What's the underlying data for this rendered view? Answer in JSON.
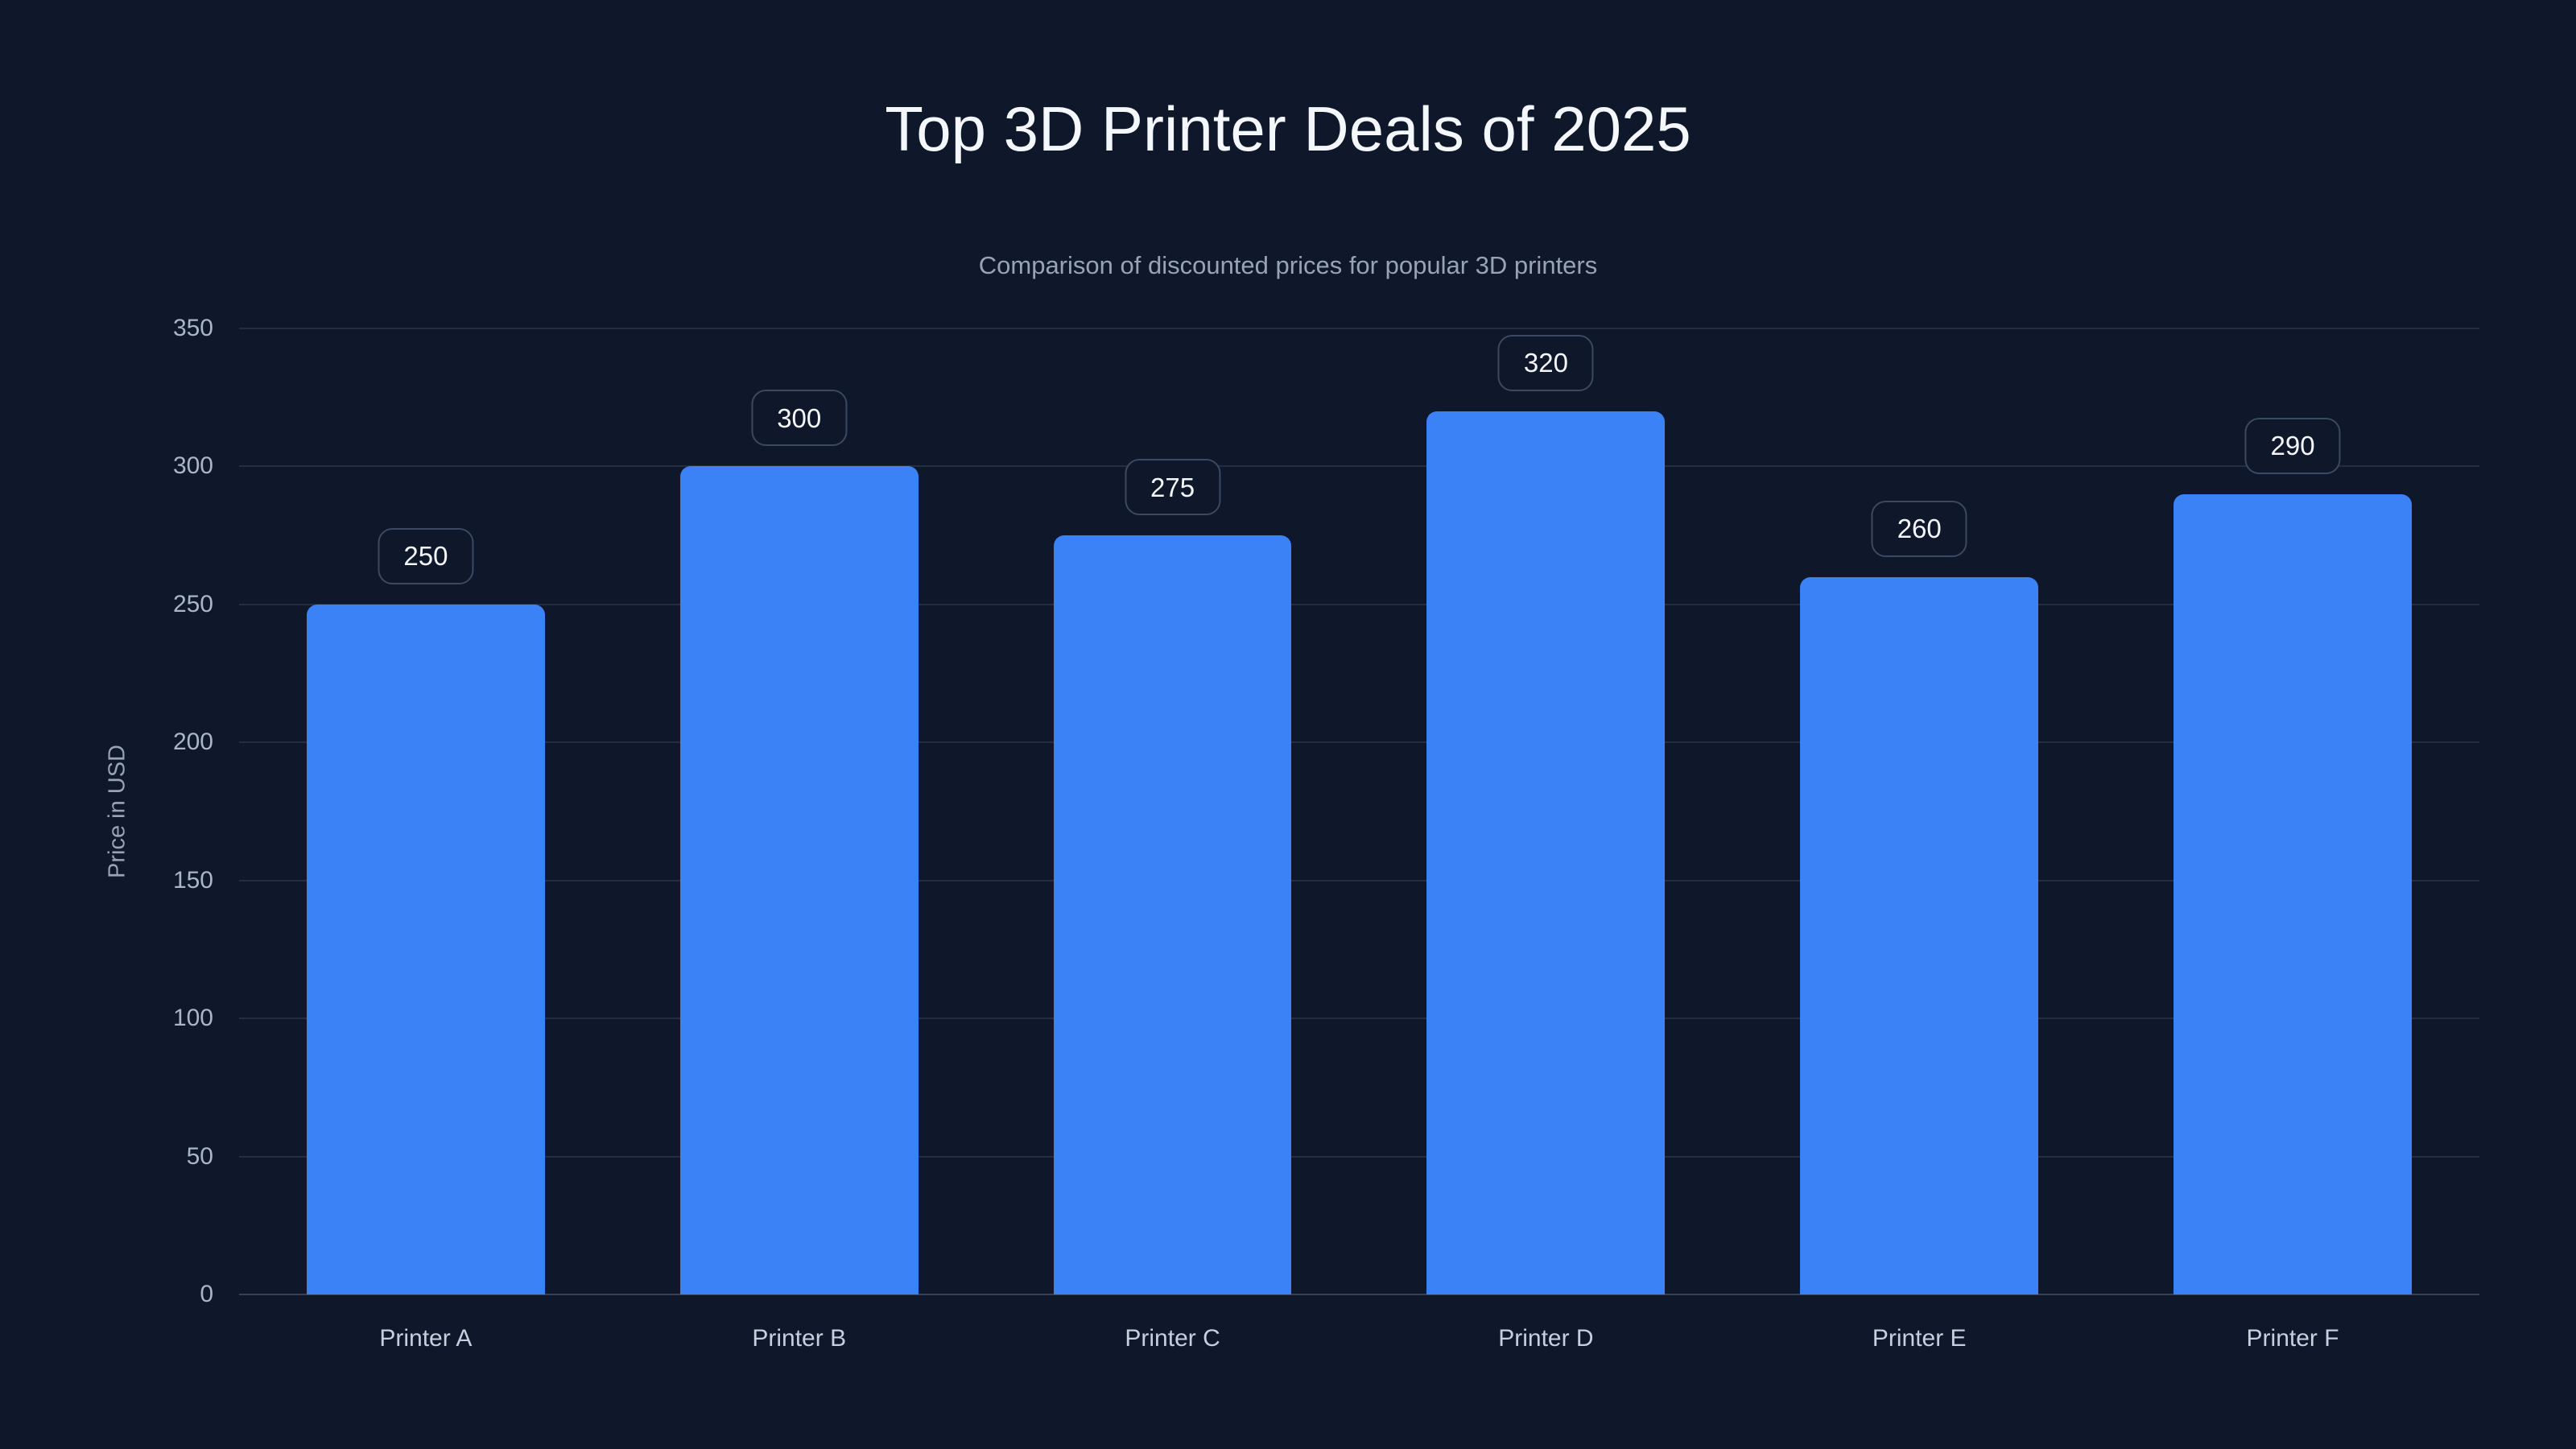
{
  "page": {
    "background": "#0f172a"
  },
  "header": {
    "title": "Top 3D Printer Deals of 2025",
    "subtitle": "Comparison of discounted prices for popular 3D printers"
  },
  "chart_data": {
    "type": "bar",
    "title": "Top 3D Printer Deals of 2025",
    "subtitle": "Comparison of discounted prices for popular 3D printers",
    "categories": [
      "Printer A",
      "Printer B",
      "Printer C",
      "Printer D",
      "Printer E",
      "Printer F"
    ],
    "values": [
      250,
      300,
      275,
      320,
      260,
      290
    ],
    "value_labels": [
      "250",
      "300",
      "275",
      "320",
      "260",
      "290"
    ],
    "xlabel": "",
    "ylabel": "Price in USD",
    "ylim": [
      0,
      350
    ],
    "yticks": [
      0,
      50,
      100,
      150,
      200,
      250,
      300,
      350
    ],
    "grid": true,
    "legend": false,
    "colors": {
      "background": "#0f172a",
      "bar": "#3b82f6",
      "title": "#f4f7fb",
      "subtitle": "#97a4b6",
      "tick_label": "#a9b6c9",
      "x_label": "#c6cfdc",
      "gridline": "rgba(148,163,184,0.16)",
      "baseline": "rgba(148,163,184,0.30)",
      "badge_border": "#3a4a61",
      "badge_text": "#f3f6fa"
    }
  }
}
